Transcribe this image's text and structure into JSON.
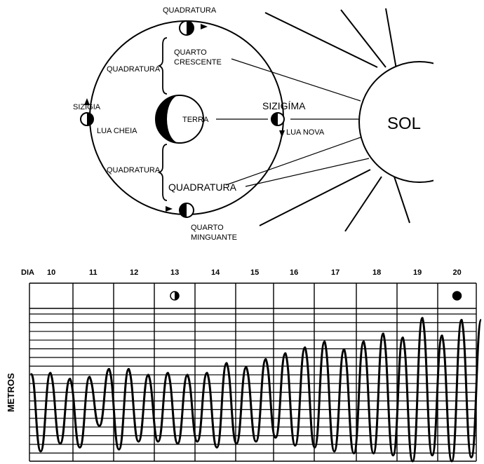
{
  "diagram": {
    "labels": {
      "quadratura_top": "QUADRATURA",
      "quadratura_upper_left": "QUADRATURA",
      "quarto_crescente_1": "QUARTO",
      "quarto_crescente_2": "CRESCENTE",
      "sizigia_left": "SIZÍGIA",
      "lua_cheia": "LUA CHEIA",
      "terra": "TERRA",
      "sizigima_right": "SIZIGÍMA",
      "lua_nova": "LUA NOVA",
      "sol": "SOL",
      "quadratura_lower_left": "QUADRATURA",
      "quadratura_bottom_big": "QUADRATURA",
      "quarto_minguante_1": "QUARTO",
      "quarto_minguante_2": "MINGUANTE"
    },
    "icons": [
      "moon-first-quarter-icon",
      "moon-full-icon",
      "moon-new-icon",
      "moon-last-quarter-icon",
      "earth-icon",
      "sun-icon"
    ]
  },
  "chart_data": {
    "type": "line",
    "day_label": "DIA",
    "ylabel": "METROS",
    "days": [
      "10",
      "11",
      "12",
      "13",
      "14",
      "15",
      "16",
      "17",
      "18",
      "19",
      "20"
    ],
    "moon_phase_markers": [
      {
        "day": "13",
        "phase": "quarter"
      },
      {
        "day": "20",
        "phase": "new"
      }
    ],
    "tide_cycles": [
      {
        "high": 0.52,
        "low": 0.05
      },
      {
        "high": 0.45,
        "low": 0.09
      },
      {
        "high": 0.42,
        "low": 0.07
      },
      {
        "high": 0.43,
        "low": 0.18
      },
      {
        "high": 0.47,
        "low": 0.06
      },
      {
        "high": 0.47,
        "low": 0.1
      },
      {
        "high": 0.44,
        "low": 0.1
      },
      {
        "high": 0.45,
        "low": 0.09
      },
      {
        "high": 0.44,
        "low": 0.1
      },
      {
        "high": 0.45,
        "low": 0.07
      },
      {
        "high": 0.5,
        "low": 0.09
      },
      {
        "high": 0.48,
        "low": 0.1
      },
      {
        "high": 0.52,
        "low": 0.12
      },
      {
        "high": 0.55,
        "low": 0.08
      },
      {
        "high": 0.58,
        "low": 0.07
      },
      {
        "high": 0.61,
        "low": 0.05
      },
      {
        "high": 0.57,
        "low": 0.04
      },
      {
        "high": 0.61,
        "low": 0.04
      },
      {
        "high": 0.65,
        "low": 0.03
      },
      {
        "high": 0.63,
        "low": 0.0
      },
      {
        "high": 0.73,
        "low": 0.03
      },
      {
        "high": 0.64,
        "low": 0.0
      },
      {
        "high": 0.72,
        "low": 0.02
      }
    ]
  }
}
